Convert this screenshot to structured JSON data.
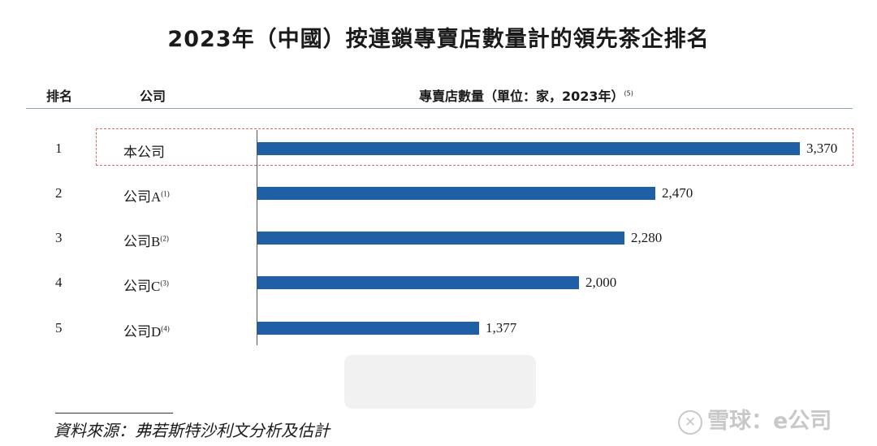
{
  "title": "2023年（中國）按連鎖專賣店數量計的領先茶企排名",
  "headers": {
    "rank": "排名",
    "company": "公司",
    "value": "專賣店數量（單位：家，2023年）",
    "value_note": "(5)"
  },
  "chart_data": {
    "type": "bar",
    "orientation": "horizontal",
    "title": "2023年（中國）按連鎖專賣店數量計的領先茶企排名",
    "categories": [
      "本公司",
      "公司A",
      "公司B",
      "公司C",
      "公司D"
    ],
    "notes": [
      "",
      "(1)",
      "(2)",
      "(3)",
      "(4)"
    ],
    "ranks": [
      "1",
      "2",
      "3",
      "4",
      "5"
    ],
    "values": [
      3370,
      2470,
      2280,
      2000,
      1377
    ],
    "value_labels": [
      "3,370",
      "2,470",
      "2,280",
      "2,000",
      "1,377"
    ],
    "xlim": [
      0,
      3370
    ],
    "highlight_index": 0,
    "bar_color": "#1f5fa6",
    "highlight_color": "#e06a6a"
  },
  "source": "資料來源：弗若斯特沙利文分析及估計",
  "watermark": {
    "icon": "snowball-logo-icon",
    "text": "雪球：e公司"
  }
}
